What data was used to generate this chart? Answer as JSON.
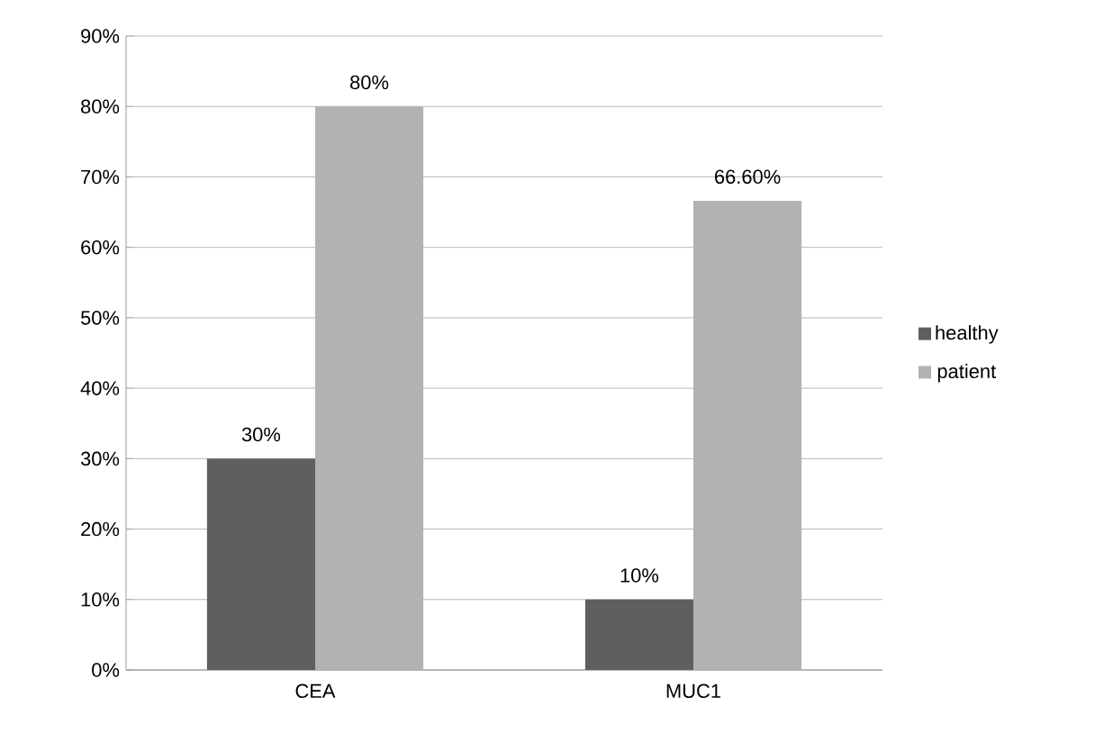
{
  "chart_data": {
    "type": "bar",
    "categories": [
      "CEA",
      "MUC1"
    ],
    "series": [
      {
        "name": "healthy",
        "color": "#5f5f5f",
        "values": [
          30,
          10
        ],
        "value_labels": [
          "30%",
          "10%"
        ]
      },
      {
        "name": "patient",
        "color": "#b2b2b2",
        "values": [
          80,
          66.6
        ],
        "value_labels": [
          "80%",
          "66.60%"
        ]
      }
    ],
    "ylim": [
      0,
      90
    ],
    "yticks": [
      {
        "value": 0,
        "label": "0%"
      },
      {
        "value": 10,
        "label": "10%"
      },
      {
        "value": 20,
        "label": "20%"
      },
      {
        "value": 30,
        "label": "30%"
      },
      {
        "value": 40,
        "label": "40%"
      },
      {
        "value": 50,
        "label": "50%"
      },
      {
        "value": 60,
        "label": "60%"
      },
      {
        "value": 70,
        "label": "70%"
      },
      {
        "value": 80,
        "label": "80%"
      },
      {
        "value": 90,
        "label": "90%"
      }
    ],
    "grid": "y",
    "legend": "right"
  }
}
